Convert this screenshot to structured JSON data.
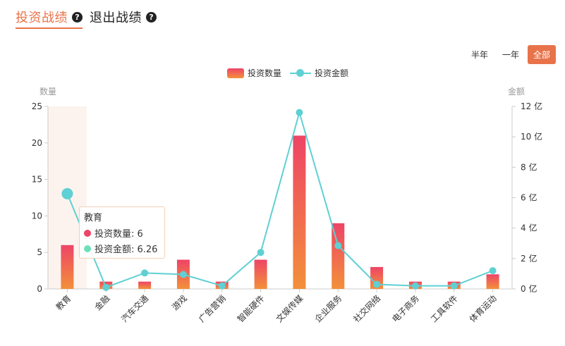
{
  "tabs": [
    {
      "label": "投资战绩",
      "active": true
    },
    {
      "label": "退出战绩",
      "active": false
    }
  ],
  "range": {
    "options": [
      "半年",
      "一年",
      "全部"
    ],
    "selected": "全部"
  },
  "chart_data": {
    "type": "bar",
    "categories": [
      "教育",
      "金融",
      "汽车交通",
      "游戏",
      "广告营销",
      "智能硬件",
      "文娱传媒",
      "企业服务",
      "社交网络",
      "电子商务",
      "工具软件",
      "体育运动"
    ],
    "series": [
      {
        "name": "投资数量",
        "type": "bar",
        "axis": "left",
        "color_top": "#ee4466",
        "color_bottom": "#f3903a",
        "values": [
          6,
          1,
          1,
          4,
          1,
          4,
          21,
          9,
          3,
          1,
          1,
          2
        ]
      },
      {
        "name": "投资金额",
        "type": "line",
        "axis": "right",
        "color": "#5fd0d3",
        "values": [
          6.26,
          0.1,
          1.05,
          0.95,
          0.2,
          2.4,
          11.6,
          2.85,
          0.3,
          0.2,
          0.2,
          1.2
        ]
      }
    ],
    "y_left": {
      "label": "数量",
      "min": 0,
      "max": 25,
      "ticks": [
        "0",
        "5",
        "10",
        "15",
        "20",
        "25"
      ]
    },
    "y_right": {
      "label": "金额",
      "min": 0,
      "max": 12,
      "ticks": [
        "0 亿",
        "2 亿",
        "4 亿",
        "6 亿",
        "8 亿",
        "10 亿",
        "12 亿"
      ]
    },
    "highlight_index": 0,
    "tooltip": {
      "title": "教育",
      "rows": [
        "投资数量: 6",
        "投资金额: 6.26"
      ]
    }
  },
  "colors": {
    "accent": "#e8734a",
    "line": "#5fd0d3",
    "highlight_band": "#fcf3ee",
    "axis": "#cccccc"
  }
}
